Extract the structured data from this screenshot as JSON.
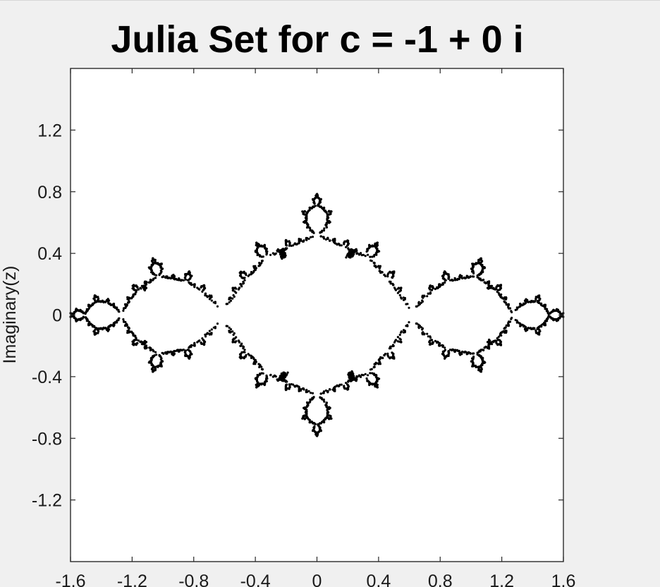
{
  "chart_data": {
    "type": "scatter",
    "title": "Julia Set for c = -1 + 0 i",
    "xlabel": "",
    "ylabel": "Imaginary(z)",
    "xlim": [
      -1.6,
      1.6
    ],
    "ylim": [
      -1.6,
      1.6
    ],
    "xticks": [
      -1.6,
      -1.2,
      -0.8,
      -0.4,
      0,
      0.4,
      0.8,
      1.2,
      1.6
    ],
    "xtick_labels": [
      "-1.6",
      "-1.2",
      "-0.8",
      "-0.4",
      "0",
      "0.4",
      "0.8",
      "1.2",
      "1.6"
    ],
    "yticks": [
      1.2,
      0.8,
      0.4,
      0,
      -0.4,
      -0.8,
      -1.2
    ],
    "ytick_labels": [
      "1.2",
      "0.8",
      "0.4",
      "0",
      "-0.4",
      "-0.8",
      "-1.2"
    ],
    "grid": false,
    "marker_color": "#000000",
    "background_color": "#ffffff",
    "c_real": -1,
    "c_imag": 0
  }
}
